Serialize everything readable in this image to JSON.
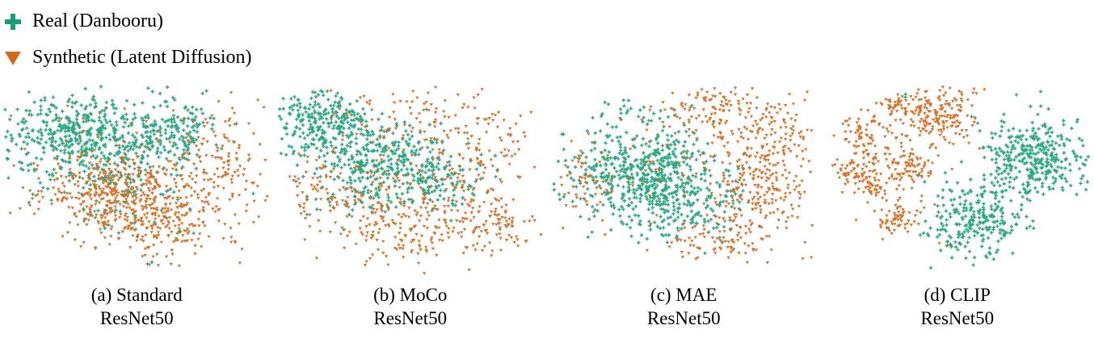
{
  "figure": {
    "background_color": "#ffffff",
    "text_color": "#000000"
  },
  "legend": {
    "position": "top-left",
    "items": [
      {
        "label": "Real (Danbooru)",
        "marker": "plus-icon",
        "color": "#1b9e77"
      },
      {
        "label": "Synthetic (Latent Diffusion)",
        "marker": "triangle-down-icon",
        "color": "#d2691e"
      }
    ]
  },
  "chart_data": [
    {
      "type": "scatter",
      "title": "(a) Standard ResNet50",
      "caption_line1": "(a) Standard",
      "caption_line2": "ResNet50",
      "axes_visible": false,
      "coordinates": "normalized 0-1, x right, y down; gaussian cluster summaries of t-SNE embedding",
      "series": [
        {
          "name": "Real (Danbooru)",
          "marker": "plus",
          "color": "#1b9e77",
          "clusters": [
            {
              "cx": 0.26,
              "cy": 0.27,
              "sx": 0.13,
              "sy": 0.1,
              "n": 420
            },
            {
              "cx": 0.55,
              "cy": 0.33,
              "sx": 0.1,
              "sy": 0.09,
              "n": 150
            },
            {
              "cx": 0.66,
              "cy": 0.2,
              "sx": 0.07,
              "sy": 0.06,
              "n": 90
            },
            {
              "cx": 0.38,
              "cy": 0.52,
              "sx": 0.14,
              "sy": 0.08,
              "n": 70
            },
            {
              "cx": 0.55,
              "cy": 0.72,
              "sx": 0.15,
              "sy": 0.1,
              "n": 25
            }
          ]
        },
        {
          "name": "Synthetic (Latent Diffusion)",
          "marker": "triangle-down",
          "color": "#d2691e",
          "clusters": [
            {
              "cx": 0.47,
              "cy": 0.58,
              "sx": 0.12,
              "sy": 0.1,
              "n": 380
            },
            {
              "cx": 0.62,
              "cy": 0.75,
              "sx": 0.12,
              "sy": 0.08,
              "n": 150
            },
            {
              "cx": 0.8,
              "cy": 0.45,
              "sx": 0.09,
              "sy": 0.14,
              "n": 130
            },
            {
              "cx": 0.3,
              "cy": 0.47,
              "sx": 0.1,
              "sy": 0.08,
              "n": 60
            },
            {
              "cx": 0.55,
              "cy": 0.25,
              "sx": 0.18,
              "sy": 0.1,
              "n": 40
            },
            {
              "cx": 0.15,
              "cy": 0.6,
              "sx": 0.07,
              "sy": 0.07,
              "n": 30
            }
          ]
        }
      ]
    },
    {
      "type": "scatter",
      "title": "(b) MoCo ResNet50",
      "caption_line1": "(b) MoCo",
      "caption_line2": "ResNet50",
      "axes_visible": false,
      "coordinates": "normalized 0-1, x right, y down; gaussian cluster summaries of t-SNE embedding",
      "series": [
        {
          "name": "Real (Danbooru)",
          "marker": "plus",
          "color": "#1b9e77",
          "clusters": [
            {
              "cx": 0.16,
              "cy": 0.2,
              "sx": 0.1,
              "sy": 0.1,
              "n": 280
            },
            {
              "cx": 0.38,
              "cy": 0.38,
              "sx": 0.12,
              "sy": 0.1,
              "n": 260
            },
            {
              "cx": 0.58,
              "cy": 0.5,
              "sx": 0.09,
              "sy": 0.08,
              "n": 140
            },
            {
              "cx": 0.3,
              "cy": 0.6,
              "sx": 0.1,
              "sy": 0.08,
              "n": 40
            }
          ]
        },
        {
          "name": "Synthetic (Latent Diffusion)",
          "marker": "triangle-down",
          "color": "#d2691e",
          "clusters": [
            {
              "cx": 0.7,
              "cy": 0.35,
              "sx": 0.15,
              "sy": 0.15,
              "n": 170
            },
            {
              "cx": 0.45,
              "cy": 0.68,
              "sx": 0.16,
              "sy": 0.1,
              "n": 200
            },
            {
              "cx": 0.8,
              "cy": 0.72,
              "sx": 0.08,
              "sy": 0.06,
              "n": 90
            },
            {
              "cx": 0.22,
              "cy": 0.52,
              "sx": 0.1,
              "sy": 0.1,
              "n": 70
            },
            {
              "cx": 0.45,
              "cy": 0.15,
              "sx": 0.15,
              "sy": 0.08,
              "n": 50
            },
            {
              "cx": 0.58,
              "cy": 0.85,
              "sx": 0.12,
              "sy": 0.06,
              "n": 40
            }
          ]
        }
      ]
    },
    {
      "type": "scatter",
      "title": "(c) MAE ResNet50",
      "caption_line1": "(c) MAE",
      "caption_line2": "ResNet50",
      "axes_visible": false,
      "coordinates": "normalized 0-1, x right, y down; gaussian cluster summaries of t-SNE embedding",
      "series": [
        {
          "name": "Real (Danbooru)",
          "marker": "plus",
          "color": "#1b9e77",
          "clusters": [
            {
              "cx": 0.34,
              "cy": 0.47,
              "sx": 0.13,
              "sy": 0.13,
              "n": 520
            },
            {
              "cx": 0.52,
              "cy": 0.6,
              "sx": 0.1,
              "sy": 0.1,
              "n": 150
            },
            {
              "cx": 0.28,
              "cy": 0.16,
              "sx": 0.06,
              "sy": 0.04,
              "n": 20
            }
          ]
        },
        {
          "name": "Synthetic (Latent Diffusion)",
          "marker": "triangle-down",
          "color": "#d2691e",
          "clusters": [
            {
              "cx": 0.78,
              "cy": 0.5,
              "sx": 0.1,
              "sy": 0.16,
              "n": 280
            },
            {
              "cx": 0.6,
              "cy": 0.14,
              "sx": 0.12,
              "sy": 0.07,
              "n": 110
            },
            {
              "cx": 0.62,
              "cy": 0.8,
              "sx": 0.1,
              "sy": 0.07,
              "n": 80
            },
            {
              "cx": 0.13,
              "cy": 0.5,
              "sx": 0.06,
              "sy": 0.1,
              "n": 60
            },
            {
              "cx": 0.45,
              "cy": 0.45,
              "sx": 0.15,
              "sy": 0.15,
              "n": 40
            },
            {
              "cx": 0.88,
              "cy": 0.2,
              "sx": 0.06,
              "sy": 0.08,
              "n": 50
            }
          ]
        }
      ]
    },
    {
      "type": "scatter",
      "title": "(d) CLIP ResNet50",
      "caption_line1": "(d) CLIP",
      "caption_line2": "ResNet50",
      "axes_visible": false,
      "coordinates": "normalized 0-1, x right, y down; gaussian cluster summaries of t-SNE embedding",
      "series": [
        {
          "name": "Real (Danbooru)",
          "marker": "plus",
          "color": "#1b9e77",
          "clusters": [
            {
              "cx": 0.79,
              "cy": 0.37,
              "sx": 0.1,
              "sy": 0.11,
              "n": 340
            },
            {
              "cx": 0.58,
              "cy": 0.7,
              "sx": 0.08,
              "sy": 0.1,
              "n": 240
            },
            {
              "cx": 0.49,
              "cy": 0.81,
              "sx": 0.03,
              "sy": 0.03,
              "n": 15
            },
            {
              "cx": 0.3,
              "cy": 0.06,
              "sx": 0.01,
              "sy": 0.01,
              "n": 2
            }
          ]
        },
        {
          "name": "Synthetic (Latent Diffusion)",
          "marker": "triangle-down",
          "color": "#d2691e",
          "clusters": [
            {
              "cx": 0.42,
              "cy": 0.15,
              "sx": 0.08,
              "sy": 0.08,
              "n": 190
            },
            {
              "cx": 0.28,
              "cy": 0.09,
              "sx": 0.04,
              "sy": 0.04,
              "n": 40
            },
            {
              "cx": 0.16,
              "cy": 0.27,
              "sx": 0.05,
              "sy": 0.06,
              "n": 75
            },
            {
              "cx": 0.11,
              "cy": 0.45,
              "sx": 0.04,
              "sy": 0.04,
              "n": 55
            },
            {
              "cx": 0.18,
              "cy": 0.52,
              "sx": 0.04,
              "sy": 0.04,
              "n": 45
            },
            {
              "cx": 0.32,
              "cy": 0.42,
              "sx": 0.06,
              "sy": 0.06,
              "n": 90
            },
            {
              "cx": 0.28,
              "cy": 0.68,
              "sx": 0.045,
              "sy": 0.05,
              "n": 70
            },
            {
              "cx": 0.44,
              "cy": 0.84,
              "sx": 0.01,
              "sy": 0.01,
              "n": 2
            }
          ]
        }
      ]
    }
  ]
}
